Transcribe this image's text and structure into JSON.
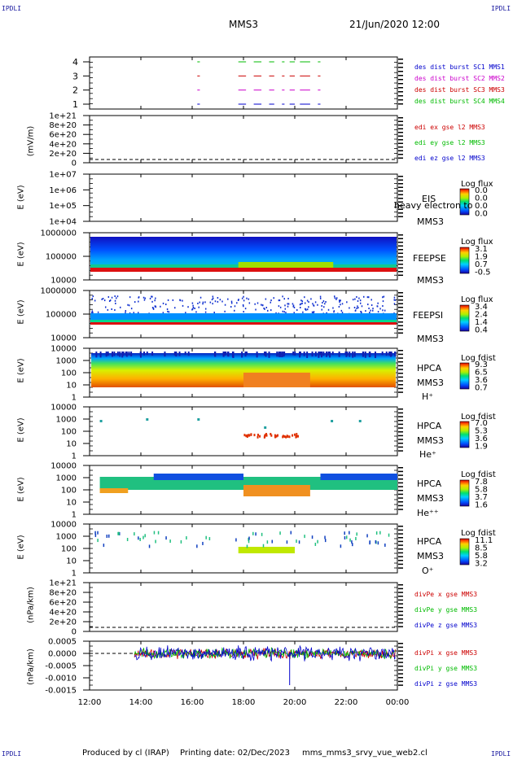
{
  "corners": {
    "tl": "IPDLI",
    "tr": "IPDLI",
    "bl": "IPDLI",
    "br": "IPDLI"
  },
  "header": {
    "spacecraft": "MMS3",
    "datetime": "21/Jun/2020 12:00"
  },
  "footer": {
    "produced": "Produced by cl (IRAP)",
    "printing": "Printing date: 02/Dec/2023",
    "script": "mms_mms3_srvy_vue_web2.cl"
  },
  "x_ticks": [
    "12:00",
    "14:00",
    "16:00",
    "18:00",
    "20:00",
    "22:00",
    "00:00"
  ],
  "panels": {
    "burst": {
      "ticks": [
        "4",
        "3",
        "2",
        "1"
      ],
      "legend": [
        "des dist burst SC1 MMS1",
        "des dist burst SC2 MMS2",
        "des dist burst SC3 MMS3",
        "des dist burst SC4 MMS4"
      ],
      "colors": [
        "#0000cc",
        "#cc00cc",
        "#cc0000",
        "#00bb00"
      ]
    },
    "edi": {
      "ylabel": "(mV/m)",
      "ticks": [
        "1e+21",
        "8e+20",
        "6e+20",
        "4e+20",
        "2e+20",
        "0"
      ],
      "legend": [
        "edi ex gse l2 MMS3",
        "edi ey gse l2 MMS3",
        "edi ez gse l2 MMS3"
      ],
      "colors": [
        "#cc0000",
        "#00bb00",
        "#0000cc"
      ]
    },
    "eis": {
      "ylabel": "E (eV)",
      "ticks": [
        "1e+07",
        "1e+06",
        "1e+05",
        "1e+04"
      ],
      "label1": "EIS",
      "label2": "MMS3",
      "overlay": "heavy electron to",
      "cb_title": "Log flux",
      "cb_values": [
        "0.0",
        "0.0",
        "0.0",
        "0.0"
      ]
    },
    "feeps_e": {
      "ylabel": "E (eV)",
      "ticks": [
        "1000000",
        "100000",
        "10000"
      ],
      "label1": "FEEPSE",
      "label2": "MMS3",
      "cb_title": "Log flux",
      "cb_values": [
        "3.1",
        "1.9",
        "0.7",
        "-0.5"
      ]
    },
    "feeps_i": {
      "ylabel": "E (eV)",
      "ticks": [
        "1000000",
        "100000",
        "10000"
      ],
      "label1": "FEEPSI",
      "label2": "MMS3",
      "cb_title": "Log flux",
      "cb_values": [
        "3.4",
        "2.4",
        "1.4",
        "0.4"
      ]
    },
    "hpca_h": {
      "ylabel": "E (eV)",
      "ticks": [
        "10000",
        "1000",
        "100",
        "10",
        "1"
      ],
      "label1": "HPCA",
      "label2": "MMS3",
      "label3": "H⁺",
      "cb_title": "Log fdist",
      "cb_values": [
        "9.3",
        "6.5",
        "3.6",
        "0.7"
      ]
    },
    "hpca_he": {
      "ylabel": "E (eV)",
      "ticks": [
        "10000",
        "1000",
        "100",
        "10",
        "1"
      ],
      "label1": "HPCA",
      "label2": "MMS3",
      "label3": "He⁺",
      "cb_title": "Log fdist",
      "cb_values": [
        "7.0",
        "5.3",
        "3.6",
        "1.9"
      ]
    },
    "hpca_hepp": {
      "ylabel": "E (eV)",
      "ticks": [
        "10000",
        "1000",
        "100",
        "10",
        "1"
      ],
      "label1": "HPCA",
      "label2": "MMS3",
      "label3": "He⁺⁺",
      "cb_title": "Log fdist",
      "cb_values": [
        "7.8",
        "5.8",
        "3.7",
        "1.6"
      ]
    },
    "hpca_o": {
      "ylabel": "E (eV)",
      "ticks": [
        "10000",
        "1000",
        "100",
        "10",
        "1"
      ],
      "label1": "HPCA",
      "label2": "MMS3",
      "label3": "O⁺",
      "cb_title": "Log fdist",
      "cb_values": [
        "11.1",
        "8.5",
        "5.8",
        "3.2"
      ]
    },
    "divpe": {
      "ylabel": "(nPa/km)",
      "ticks": [
        "1e+21",
        "8e+20",
        "6e+20",
        "4e+20",
        "2e+20",
        "0"
      ],
      "legend": [
        "divPe x gse MMS3",
        "divPe y gse MMS3",
        "divPe z gse MMS3"
      ],
      "colors": [
        "#cc0000",
        "#00bb00",
        "#0000cc"
      ]
    },
    "divpi": {
      "ylabel": "(nPa/km)",
      "ticks": [
        "0.0005",
        "0.0000",
        "-0.0005",
        "-0.0010",
        "-0.0015"
      ],
      "legend": [
        "divPi x gse MMS3",
        "divPi y gse MMS3",
        "divPi z gse MMS3"
      ],
      "colors": [
        "#cc0000",
        "#00bb00",
        "#0000cc"
      ]
    }
  },
  "chart_data": {
    "type": "heatmap",
    "title": "MMS3 21/Jun/2020 12:00",
    "x_range": [
      "12:00",
      "00:00"
    ],
    "x_ticks": [
      "12:00",
      "14:00",
      "16:00",
      "18:00",
      "20:00",
      "22:00",
      "00:00"
    ],
    "series": [
      {
        "name": "des dist burst SC1 MMS1",
        "values": []
      },
      {
        "name": "FEEPSE",
        "y_range": [
          10000,
          1000000
        ],
        "log_scale": true
      },
      {
        "name": "FEEPSI",
        "y_range": [
          10000,
          1000000
        ],
        "log_scale": true
      },
      {
        "name": "HPCA H+",
        "y_range": [
          1,
          10000
        ],
        "log_scale": true
      },
      {
        "name": "HPCA He+",
        "y_range": [
          1,
          10000
        ],
        "log_scale": true
      },
      {
        "name": "HPCA He++",
        "y_range": [
          1,
          10000
        ],
        "log_scale": true
      },
      {
        "name": "HPCA O+",
        "y_range": [
          1,
          10000
        ],
        "log_scale": true
      },
      {
        "name": "divPi",
        "y_range": [
          -0.0015,
          0.0005
        ]
      }
    ]
  }
}
